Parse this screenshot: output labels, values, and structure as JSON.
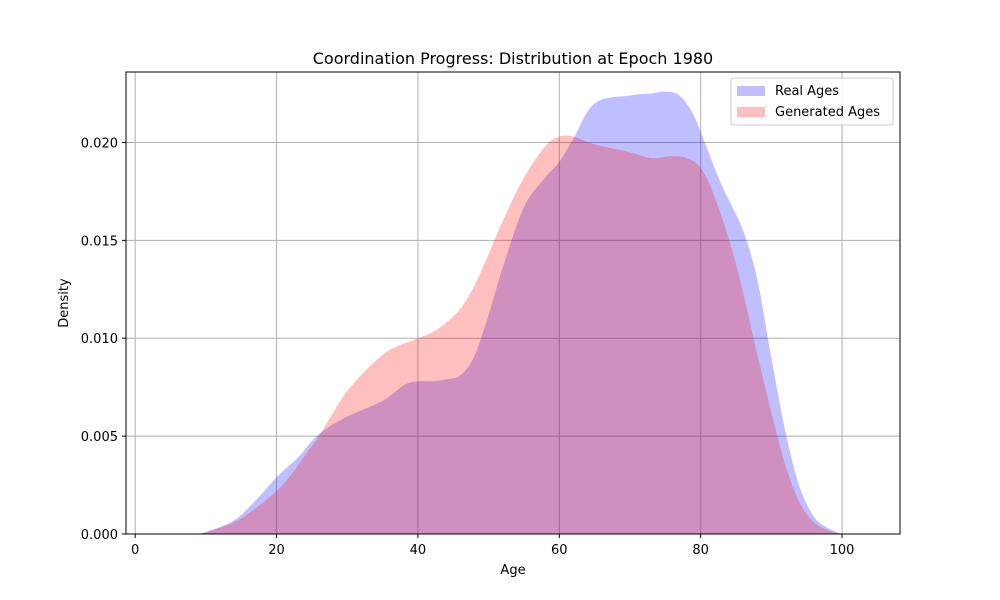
{
  "chart_data": {
    "type": "area",
    "title": "Coordination Progress: Distribution at Epoch 1980",
    "xlabel": "Age",
    "ylabel": "Density",
    "xlim": [
      -1.3,
      108.2
    ],
    "ylim": [
      0,
      0.0236
    ],
    "xticks": [
      0,
      20,
      40,
      60,
      80,
      100
    ],
    "yticks": [
      0,
      0.005,
      0.01,
      0.015,
      0.02
    ],
    "ytick_labels": [
      "0.000",
      "0.005",
      "0.010",
      "0.015",
      "0.020"
    ],
    "grid": true,
    "legend_position": "top-right",
    "series": [
      {
        "name": "Real Ages",
        "color": "#0000ff",
        "alpha": 0.25,
        "x": [
          0,
          8,
          10,
          14,
          17,
          20,
          23,
          26,
          30,
          35,
          38,
          40,
          42,
          44,
          46,
          48,
          50,
          52,
          55,
          58,
          60,
          62,
          65,
          70,
          73,
          75,
          77,
          79,
          81,
          83,
          86,
          88,
          90,
          92,
          94,
          96,
          98,
          100
        ],
        "y": [
          0,
          0,
          0.0001,
          0.0007,
          0.0017,
          0.0029,
          0.0039,
          0.0051,
          0.006,
          0.0068,
          0.0076,
          0.0078,
          0.0078,
          0.0079,
          0.0081,
          0.0091,
          0.0112,
          0.0136,
          0.0167,
          0.0182,
          0.019,
          0.0202,
          0.022,
          0.0224,
          0.0225,
          0.0226,
          0.0224,
          0.0214,
          0.0196,
          0.0178,
          0.0155,
          0.013,
          0.009,
          0.0052,
          0.0024,
          0.0009,
          0.0003,
          0
        ]
      },
      {
        "name": "Generated Ages",
        "color": "#ff0000",
        "alpha": 0.25,
        "x": [
          0,
          8,
          10,
          14,
          17,
          20,
          22,
          24,
          26,
          28,
          30,
          33,
          36,
          40,
          42,
          44,
          46,
          48,
          50,
          52,
          55,
          58,
          60,
          62,
          65,
          70,
          73,
          76,
          78,
          80,
          82,
          85,
          88,
          90,
          92,
          94,
          96,
          98,
          100
        ],
        "y": [
          0,
          0,
          0.0001,
          0.0006,
          0.0013,
          0.0022,
          0.003,
          0.004,
          0.005,
          0.0062,
          0.0073,
          0.0085,
          0.0094,
          0.01,
          0.0103,
          0.0108,
          0.0115,
          0.0127,
          0.0143,
          0.016,
          0.0182,
          0.0198,
          0.0203,
          0.0203,
          0.0199,
          0.0195,
          0.0192,
          0.0193,
          0.0192,
          0.0187,
          0.0172,
          0.0138,
          0.0092,
          0.0062,
          0.0035,
          0.0016,
          0.0006,
          0.0002,
          0
        ]
      }
    ]
  }
}
